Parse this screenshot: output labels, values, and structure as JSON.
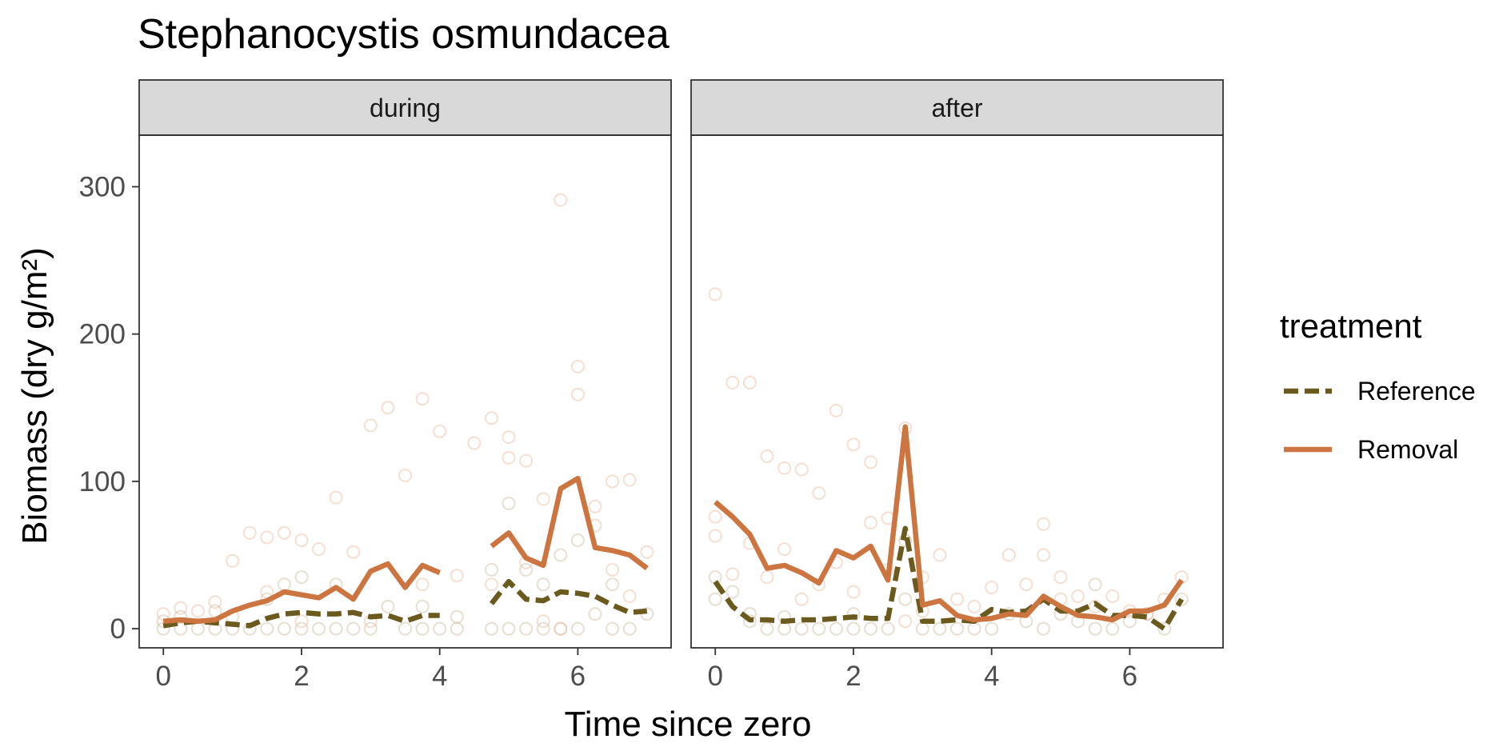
{
  "chart_data": {
    "type": "line",
    "title": "Stephanocystis osmundacea",
    "xlabel": "Time since zero",
    "ylabel": "Biomass (dry g/m²)",
    "ylim": [
      -13,
      335
    ],
    "yticks": [
      0,
      100,
      200,
      300
    ],
    "ytick_labels": [
      "0",
      "100",
      "200",
      "300"
    ],
    "grid": false,
    "legend": {
      "title": "treatment",
      "placement": "right",
      "entries": [
        {
          "label": "Reference",
          "color": "#6b5a1e",
          "dash": true
        },
        {
          "label": "Removal",
          "color": "#cc7541",
          "dash": false
        }
      ]
    },
    "point_colors": {
      "Reference": "#c9b79c",
      "Removal": "#e9b99c"
    },
    "panels": [
      {
        "name": "during",
        "xlim": [
          -0.35,
          7.35
        ],
        "xticks": [
          0,
          2,
          4,
          6
        ],
        "xtick_labels": [
          "0",
          "2",
          "4",
          "6"
        ],
        "series": [
          {
            "name": "Reference",
            "segments": [
              {
                "x": [
                  0,
                  0.25,
                  0.5,
                  0.75,
                  1.0,
                  1.25,
                  1.5,
                  1.75,
                  2.0,
                  2.25,
                  2.5,
                  2.75,
                  3.0,
                  3.25,
                  3.5,
                  3.75,
                  4.0
                ],
                "y": [
                  2,
                  4,
                  5,
                  4,
                  3,
                  2,
                  7,
                  10,
                  11,
                  10,
                  10,
                  11,
                  8,
                  9,
                  5,
                  9,
                  9
                ]
              },
              {
                "x": [
                  4.75,
                  5.0,
                  5.25,
                  5.5,
                  5.75,
                  6.0,
                  6.25,
                  6.5,
                  6.75,
                  7.0
                ],
                "y": [
                  17,
                  32,
                  20,
                  19,
                  25,
                  24,
                  22,
                  16,
                  11,
                  12
                ]
              }
            ]
          },
          {
            "name": "Removal",
            "segments": [
              {
                "x": [
                  0,
                  0.25,
                  0.5,
                  0.75,
                  1.0,
                  1.25,
                  1.5,
                  1.75,
                  2.0,
                  2.25,
                  2.5,
                  2.75,
                  3.0,
                  3.25,
                  3.5,
                  3.75,
                  4.0
                ],
                "y": [
                  5,
                  6,
                  5,
                  6,
                  12,
                  16,
                  19,
                  25,
                  23,
                  21,
                  28,
                  20,
                  39,
                  44,
                  28,
                  43,
                  38
                ]
              },
              {
                "x": [
                  4.75,
                  5.0,
                  5.25,
                  5.5,
                  5.75,
                  6.0,
                  6.25,
                  6.5,
                  6.75,
                  7.0
                ],
                "y": [
                  56,
                  65,
                  48,
                  43,
                  95,
                  102,
                  55,
                  53,
                  50,
                  41
                ]
              }
            ]
          }
        ],
        "points": {
          "Reference": {
            "x": [
              0,
              0,
              0.25,
              0.25,
              0.5,
              0.75,
              0.75,
              1.0,
              1.25,
              1.5,
              1.5,
              1.75,
              1.75,
              2.0,
              2.0,
              2.25,
              2.5,
              2.5,
              2.75,
              3.0,
              3.25,
              3.5,
              3.75,
              3.75,
              4.0,
              4.25,
              4.25,
              4.75,
              4.75,
              5.0,
              5.0,
              5.25,
              5.25,
              5.5,
              5.5,
              5.75,
              5.75,
              6.0,
              6.0,
              6.25,
              6.5,
              6.5,
              6.75,
              7.0
            ],
            "y": [
              0,
              5,
              0,
              8,
              0,
              0,
              12,
              0,
              0,
              0,
              20,
              0,
              30,
              0,
              35,
              0,
              0,
              30,
              0,
              0,
              15,
              0,
              0,
              15,
              0,
              0,
              8,
              0,
              40,
              0,
              85,
              0,
              40,
              0,
              30,
              0,
              50,
              0,
              60,
              10,
              0,
              30,
              0,
              10
            ]
          },
          "Removal": {
            "x": [
              0,
              0.25,
              0.5,
              0.75,
              1.0,
              1.0,
              1.25,
              1.5,
              1.5,
              1.75,
              2.0,
              2.0,
              2.25,
              2.5,
              2.75,
              3.0,
              3.0,
              3.25,
              3.5,
              3.75,
              3.75,
              4.0,
              4.25,
              4.5,
              4.75,
              4.75,
              5.0,
              5.0,
              5.25,
              5.25,
              5.5,
              5.5,
              5.75,
              5.75,
              6.0,
              6.0,
              6.25,
              6.25,
              6.5,
              6.5,
              6.75,
              6.75,
              7.0
            ],
            "y": [
              10,
              14,
              12,
              18,
              8,
              46,
              65,
              25,
              62,
              65,
              5,
              60,
              54,
              89,
              52,
              5,
              138,
              150,
              104,
              30,
              156,
              134,
              36,
              126,
              30,
              143,
              116,
              130,
              45,
              114,
              5,
              88,
              0,
              291,
              159,
              178,
              70,
              83,
              40,
              100,
              22,
              101,
              52
            ]
          }
        }
      },
      {
        "name": "after",
        "xlim": [
          -0.35,
          7.35
        ],
        "xticks": [
          0,
          2,
          4,
          6
        ],
        "xtick_labels": [
          "0",
          "2",
          "4",
          "6"
        ],
        "series": [
          {
            "name": "Reference",
            "segments": [
              {
                "x": [
                  0,
                  0.25,
                  0.5,
                  0.75,
                  1.0,
                  1.25,
                  1.5,
                  1.75,
                  2.0,
                  2.25,
                  2.5,
                  2.75,
                  3.0,
                  3.25,
                  3.5,
                  3.75,
                  4.0,
                  4.25,
                  4.5,
                  4.75,
                  5.0,
                  5.25,
                  5.5,
                  5.75,
                  6.0,
                  6.25,
                  6.5,
                  6.75
                ],
                "y": [
                  32,
                  15,
                  6,
                  6,
                  5,
                  6,
                  6,
                  7,
                  8,
                  7,
                  7,
                  68,
                  5,
                  5,
                  6,
                  5,
                  13,
                  11,
                  12,
                  20,
                  12,
                  12,
                  17,
                  9,
                  9,
                  8,
                  0,
                  20
                ]
              }
            ]
          },
          {
            "name": "Removal",
            "segments": [
              {
                "x": [
                  0,
                  0.25,
                  0.5,
                  0.75,
                  1.0,
                  1.25,
                  1.5,
                  1.75,
                  2.0,
                  2.25,
                  2.5,
                  2.75,
                  3.0,
                  3.25,
                  3.5,
                  3.75,
                  4.0,
                  4.25,
                  4.5,
                  4.75,
                  5.0,
                  5.25,
                  5.5,
                  5.75,
                  6.0,
                  6.25,
                  6.5,
                  6.75
                ],
                "y": [
                  86,
                  76,
                  64,
                  41,
                  43,
                  38,
                  31,
                  53,
                  48,
                  56,
                  33,
                  137,
                  16,
                  19,
                  9,
                  6,
                  7,
                  10,
                  9,
                  22,
                  15,
                  9,
                  8,
                  6,
                  12,
                  12,
                  16,
                  33
                ]
              }
            ]
          }
        ],
        "points": {
          "Reference": {
            "x": [
              0,
              0,
              0.25,
              0.5,
              0.5,
              0.75,
              1.0,
              1.0,
              1.25,
              1.5,
              1.75,
              2.0,
              2.0,
              2.25,
              2.5,
              2.75,
              2.75,
              3.0,
              3.25,
              3.5,
              3.75,
              4.0,
              4.25,
              4.5,
              4.75,
              5.0,
              5.25,
              5.5,
              5.5,
              5.75,
              6.0,
              6.25,
              6.5,
              6.75
            ],
            "y": [
              20,
              35,
              25,
              5,
              10,
              0,
              0,
              8,
              0,
              0,
              0,
              0,
              10,
              0,
              0,
              20,
              60,
              0,
              0,
              0,
              0,
              0,
              10,
              5,
              0,
              10,
              5,
              0,
              30,
              0,
              5,
              10,
              0,
              20
            ]
          },
          "Removal": {
            "x": [
              0,
              0,
              0,
              0.25,
              0.25,
              0.5,
              0.5,
              0.75,
              0.75,
              1.0,
              1.0,
              1.25,
              1.25,
              1.5,
              1.5,
              1.75,
              1.75,
              2.0,
              2.0,
              2.25,
              2.25,
              2.5,
              2.5,
              2.75,
              2.75,
              3.0,
              3.0,
              3.25,
              3.5,
              3.75,
              4.0,
              4.25,
              4.5,
              4.75,
              4.75,
              5.0,
              5.0,
              5.25,
              5.5,
              5.75,
              6.0,
              6.25,
              6.5,
              6.75
            ],
            "y": [
              63,
              76,
              227,
              37,
              167,
              58,
              167,
              35,
              117,
              54,
              109,
              20,
              108,
              30,
              92,
              45,
              148,
              25,
              125,
              72,
              113,
              40,
              75,
              5,
              136,
              12,
              35,
              50,
              20,
              15,
              28,
              50,
              30,
              50,
              71,
              20,
              35,
              22,
              15,
              22,
              12,
              10,
              20,
              35
            ]
          }
        }
      }
    ]
  }
}
